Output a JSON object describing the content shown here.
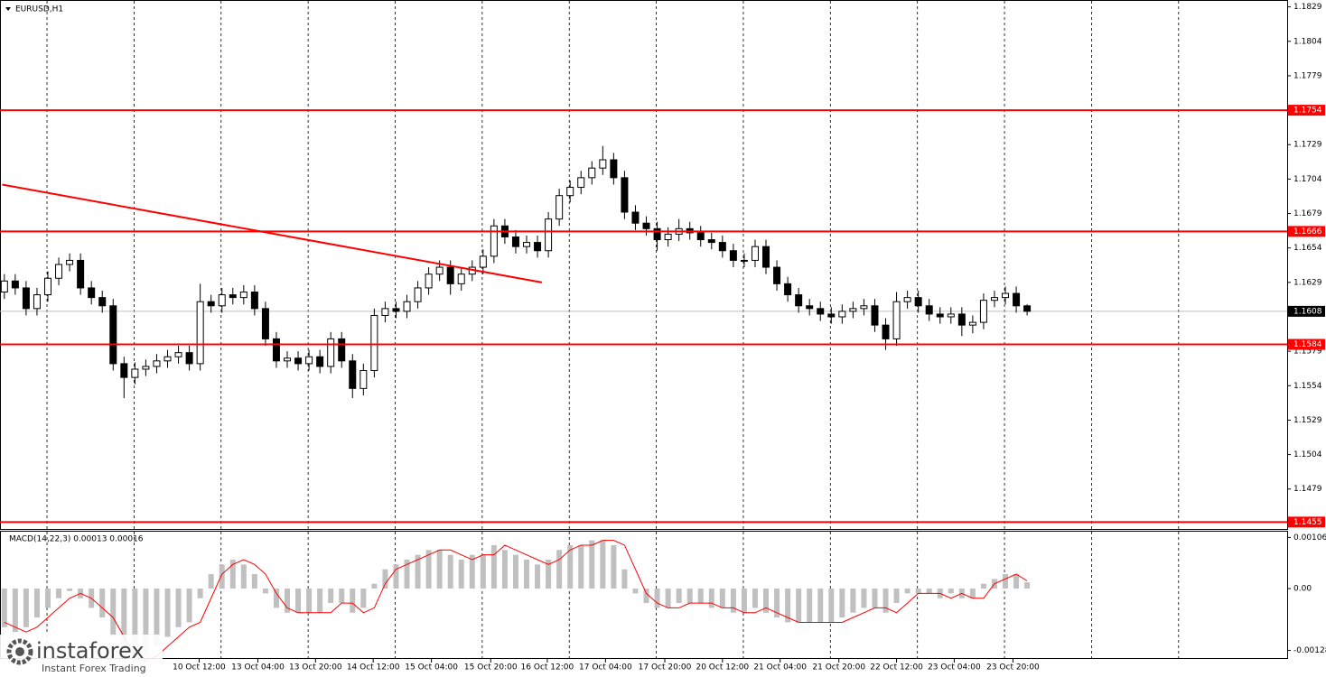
{
  "chart_data": [
    {
      "type": "candlestick",
      "title": "EURUSD,H1",
      "open": [
        1.1622,
        1.163,
        1.1625,
        1.161,
        1.162,
        1.1632,
        1.1642,
        1.1645,
        1.1625,
        1.1618,
        1.1612,
        1.157,
        1.156,
        1.1566,
        1.1568,
        1.1572,
        1.1575,
        1.1578,
        1.157,
        1.1615,
        1.1612,
        1.162,
        1.1618,
        1.1622,
        1.161,
        1.1588,
        1.1572,
        1.1574,
        1.157,
        1.1575,
        1.1568,
        1.1588,
        1.1572,
        1.1552,
        1.1565,
        1.1605,
        1.161,
        1.1608,
        1.1615,
        1.1625,
        1.1635,
        1.164,
        1.1628,
        1.1635,
        1.164,
        1.1648,
        1.167,
        1.1662,
        1.1655,
        1.1658,
        1.1652,
        1.1675,
        1.1692,
        1.1698,
        1.1705,
        1.1712,
        1.1718,
        1.1705,
        1.168,
        1.1672,
        1.1668,
        1.166,
        1.1664,
        1.1668,
        1.1665,
        1.166,
        1.1658,
        1.1652,
        1.1645,
        1.1645,
        1.1655,
        1.164,
        1.1628,
        1.162,
        1.1612,
        1.161,
        1.1606,
        1.1604,
        1.1608,
        1.161,
        1.1612,
        1.1598,
        1.1588,
        1.1615,
        1.1618,
        1.1612,
        1.1606,
        1.1604,
        1.1606,
        1.1598,
        1.16,
        1.1616,
        1.1618,
        1.1621,
        1.1612
      ],
      "high": [
        1.1635,
        1.1635,
        1.163,
        1.1625,
        1.1637,
        1.1647,
        1.165,
        1.165,
        1.163,
        1.1623,
        1.1617,
        1.1575,
        1.1571,
        1.1573,
        1.1577,
        1.158,
        1.1583,
        1.1583,
        1.1628,
        1.162,
        1.1625,
        1.1625,
        1.1627,
        1.1627,
        1.1615,
        1.1593,
        1.1579,
        1.1579,
        1.158,
        1.158,
        1.1593,
        1.1593,
        1.1577,
        1.157,
        1.161,
        1.1615,
        1.1615,
        1.162,
        1.163,
        1.164,
        1.1645,
        1.1645,
        1.164,
        1.1645,
        1.1653,
        1.1675,
        1.1675,
        1.1667,
        1.1663,
        1.1663,
        1.168,
        1.1697,
        1.1703,
        1.171,
        1.1717,
        1.1728,
        1.1723,
        1.171,
        1.1685,
        1.1677,
        1.1673,
        1.1669,
        1.1675,
        1.1673,
        1.167,
        1.1665,
        1.1663,
        1.1657,
        1.165,
        1.166,
        1.166,
        1.1645,
        1.1633,
        1.1625,
        1.1617,
        1.1615,
        1.1611,
        1.1613,
        1.1615,
        1.1617,
        1.1617,
        1.1603,
        1.1622,
        1.1623,
        1.1623,
        1.1617,
        1.1611,
        1.1611,
        1.1611,
        1.1605,
        1.1621,
        1.1623,
        1.1626,
        1.1626,
        1.1613
      ],
      "low": [
        1.1617,
        1.162,
        1.1605,
        1.1605,
        1.1615,
        1.1627,
        1.1637,
        1.162,
        1.1613,
        1.1607,
        1.1565,
        1.1545,
        1.1555,
        1.1561,
        1.1563,
        1.1567,
        1.157,
        1.1565,
        1.1565,
        1.1607,
        1.1607,
        1.1613,
        1.1613,
        1.1605,
        1.1583,
        1.1567,
        1.1567,
        1.1565,
        1.1565,
        1.1563,
        1.1563,
        1.1567,
        1.1545,
        1.1547,
        1.156,
        1.16,
        1.1603,
        1.1603,
        1.161,
        1.162,
        1.163,
        1.162,
        1.1623,
        1.163,
        1.1635,
        1.1643,
        1.1657,
        1.165,
        1.165,
        1.1647,
        1.1647,
        1.167,
        1.1687,
        1.1693,
        1.17,
        1.1707,
        1.17,
        1.1675,
        1.1667,
        1.1663,
        1.1652,
        1.1655,
        1.1659,
        1.166,
        1.1655,
        1.1653,
        1.1647,
        1.164,
        1.164,
        1.164,
        1.1635,
        1.1623,
        1.1615,
        1.1607,
        1.1605,
        1.1601,
        1.1599,
        1.1599,
        1.1603,
        1.1605,
        1.1593,
        1.158,
        1.1583,
        1.161,
        1.1607,
        1.1601,
        1.1599,
        1.1599,
        1.159,
        1.1592,
        1.1595,
        1.1611,
        1.1613,
        1.1607,
        1.1605
      ],
      "close": [
        1.163,
        1.1625,
        1.161,
        1.162,
        1.1632,
        1.1642,
        1.1645,
        1.1625,
        1.1618,
        1.1612,
        1.157,
        1.156,
        1.1566,
        1.1568,
        1.1572,
        1.1575,
        1.1578,
        1.157,
        1.1615,
        1.1612,
        1.162,
        1.1618,
        1.1622,
        1.161,
        1.1588,
        1.1572,
        1.1574,
        1.157,
        1.1575,
        1.1568,
        1.1588,
        1.1572,
        1.1552,
        1.1565,
        1.1605,
        1.161,
        1.1608,
        1.1615,
        1.1625,
        1.1635,
        1.164,
        1.1628,
        1.1635,
        1.164,
        1.1648,
        1.167,
        1.1662,
        1.1655,
        1.1658,
        1.1652,
        1.1675,
        1.1692,
        1.1698,
        1.1705,
        1.1712,
        1.1718,
        1.1705,
        1.168,
        1.1672,
        1.1668,
        1.166,
        1.1664,
        1.1668,
        1.1665,
        1.166,
        1.1658,
        1.1652,
        1.1645,
        1.1645,
        1.1655,
        1.164,
        1.1628,
        1.162,
        1.1612,
        1.161,
        1.1606,
        1.1604,
        1.1608,
        1.161,
        1.1612,
        1.1598,
        1.1588,
        1.1615,
        1.1618,
        1.1612,
        1.1606,
        1.1604,
        1.1606,
        1.1598,
        1.16,
        1.1616,
        1.1618,
        1.1621,
        1.1612,
        1.1608
      ],
      "color_up": "#ffffff",
      "color_down": "#000000",
      "xlim": [
        -0.4,
        117.9
      ],
      "ylim": [
        1.145,
        1.1834
      ],
      "yticks": [
        1.1829,
        1.1804,
        1.1779,
        1.1729,
        1.1704,
        1.1679,
        1.1654,
        1.1629,
        1.1579,
        1.1554,
        1.1529,
        1.1504,
        1.1479
      ],
      "xticks": [
        {
          "value": 17.9,
          "label": "10 Oct 12:00"
        },
        {
          "value": 23.3,
          "label": "13 Oct 04:00"
        },
        {
          "value": 28.6,
          "label": "13 Oct 20:00"
        },
        {
          "value": 33.9,
          "label": "14 Oct 12:00"
        },
        {
          "value": 39.25,
          "label": "15 Oct 04:00"
        },
        {
          "value": 44.7,
          "label": "15 Oct 20:00"
        },
        {
          "value": 49.9,
          "label": "16 Oct 12:00"
        },
        {
          "value": 55.25,
          "label": "17 Oct 04:00"
        },
        {
          "value": 60.7,
          "label": "17 Oct 20:00"
        },
        {
          "value": 66,
          "label": "20 Oct 12:00"
        },
        {
          "value": 71.3,
          "label": "21 Oct 04:00"
        },
        {
          "value": 76.7,
          "label": "21 Oct 20:00"
        },
        {
          "value": 82,
          "label": "22 Oct 12:00"
        },
        {
          "value": 87.3,
          "label": "23 Oct 04:00"
        },
        {
          "value": 92.7,
          "label": "23 Oct 20:00"
        }
      ],
      "xgrid": [
        3.92,
        11.92,
        19.92,
        27.92,
        35.92,
        43.92,
        51.92,
        59.92,
        67.92,
        75.92,
        83.92,
        91.92,
        99.92,
        107.92
      ],
      "levels": [
        {
          "value": 1.1754,
          "color": "#ff0000"
        },
        {
          "value": 1.1666,
          "color": "#ff0000"
        },
        {
          "value": 1.1584,
          "color": "#ff0000"
        },
        {
          "value": 1.1455,
          "color": "#ff0000"
        }
      ],
      "current": 1.1608,
      "trendline": {
        "x": [
          -0.2,
          49.4
        ],
        "y": [
          1.17,
          1.1629
        ],
        "color": "#ff0000"
      }
    },
    {
      "type": "macd",
      "title": "MACD(14,22,3) 0.00013 0.00016",
      "color": "#c0c0c0",
      "values": [
        -0.0008,
        -0.0009,
        -0.0008,
        -0.0006,
        -0.0004,
        -0.0002,
        -5e-05,
        -0.0002,
        -0.0004,
        -0.0006,
        -0.001,
        -0.0014,
        -0.0015,
        -0.0014,
        -0.0012,
        -0.001,
        -0.0008,
        -0.0007,
        -0.0002,
        0.0003,
        0.0005,
        0.0006,
        0.0005,
        0.0003,
        -0.0001,
        -0.0004,
        -0.0005,
        -0.0005,
        -0.0005,
        -0.0005,
        -0.0003,
        -0.0003,
        -0.0005,
        -0.0004,
        0.0001,
        0.0004,
        0.0005,
        0.0006,
        0.0007,
        0.0008,
        0.0008,
        0.0007,
        0.0006,
        0.0007,
        0.0007,
        0.0009,
        0.0008,
        0.0007,
        0.0006,
        0.0005,
        0.0006,
        0.0008,
        0.0009,
        0.0009,
        0.001,
        0.001,
        0.0009,
        0.0004,
        -0.0001,
        -0.0003,
        -0.0004,
        -0.0004,
        -0.0003,
        -0.0003,
        -0.0003,
        -0.0004,
        -0.0004,
        -0.0005,
        -0.0005,
        -0.0004,
        -0.0005,
        -0.0006,
        -0.0007,
        -0.0007,
        -0.0007,
        -0.0007,
        -0.0007,
        -0.0006,
        -0.0005,
        -0.0004,
        -0.0004,
        -0.0005,
        -0.0003,
        -0.0001,
        -0.0001,
        -0.0001,
        -0.0002,
        -0.0001,
        -0.0002,
        -0.0002,
        0.0001,
        0.0002,
        0.0003,
        0.0003,
        0.00013
      ],
      "signal_values": [
        -0.0007,
        -0.0008,
        -0.0009,
        -0.0008,
        -0.0006,
        -0.0004,
        -0.0002,
        -0.0001,
        -0.0002,
        -0.0004,
        -0.0006,
        -0.001,
        -0.0014,
        -0.0015,
        -0.0014,
        -0.0012,
        -0.001,
        -0.0008,
        -0.0007,
        -0.0002,
        0.0003,
        0.0005,
        0.0006,
        0.0005,
        0.0003,
        -0.0001,
        -0.0004,
        -0.0005,
        -0.0005,
        -0.0005,
        -0.0005,
        -0.0003,
        -0.0003,
        -0.0005,
        -0.0004,
        0.0001,
        0.0004,
        0.0005,
        0.0006,
        0.0007,
        0.0008,
        0.0008,
        0.0007,
        0.0006,
        0.0007,
        0.0007,
        0.0009,
        0.0008,
        0.0007,
        0.0006,
        0.0005,
        0.0006,
        0.0008,
        0.0009,
        0.0009,
        0.001,
        0.001,
        0.0009,
        0.0004,
        -0.0001,
        -0.0003,
        -0.0004,
        -0.0004,
        -0.0003,
        -0.0003,
        -0.0003,
        -0.0004,
        -0.0004,
        -0.0005,
        -0.0005,
        -0.0004,
        -0.0005,
        -0.0006,
        -0.0007,
        -0.0007,
        -0.0007,
        -0.0007,
        -0.0007,
        -0.0006,
        -0.0005,
        -0.0004,
        -0.0004,
        -0.0005,
        -0.0003,
        -0.0001,
        -0.0001,
        -0.0001,
        -0.0002,
        -0.0001,
        -0.0002,
        -0.0002,
        0.0001,
        0.0002,
        0.0003,
        0.00016
      ],
      "signal_color": "#ff0000",
      "ylim": [
        -0.00144,
        0.00118
      ],
      "yticks": [
        0.00106,
        {
          "value": 0,
          "label": "0.00"
        },
        -0.00128
      ]
    }
  ],
  "watermark": {
    "name": "instaforex",
    "tagline": "Instant Forex Trading"
  }
}
